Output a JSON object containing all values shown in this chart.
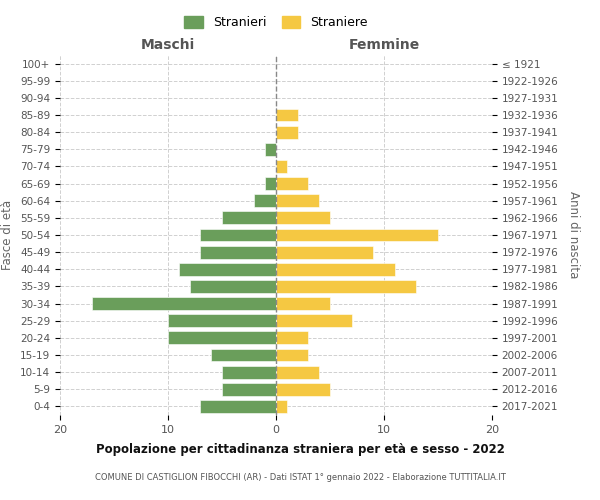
{
  "age_groups": [
    "0-4",
    "5-9",
    "10-14",
    "15-19",
    "20-24",
    "25-29",
    "30-34",
    "35-39",
    "40-44",
    "45-49",
    "50-54",
    "55-59",
    "60-64",
    "65-69",
    "70-74",
    "75-79",
    "80-84",
    "85-89",
    "90-94",
    "95-99",
    "100+"
  ],
  "birth_years": [
    "2017-2021",
    "2012-2016",
    "2007-2011",
    "2002-2006",
    "1997-2001",
    "1992-1996",
    "1987-1991",
    "1982-1986",
    "1977-1981",
    "1972-1976",
    "1967-1971",
    "1962-1966",
    "1957-1961",
    "1952-1956",
    "1947-1951",
    "1942-1946",
    "1937-1941",
    "1932-1936",
    "1927-1931",
    "1922-1926",
    "≤ 1921"
  ],
  "maschi": [
    7,
    5,
    5,
    6,
    10,
    10,
    17,
    8,
    9,
    7,
    7,
    5,
    2,
    1,
    0,
    1,
    0,
    0,
    0,
    0,
    0
  ],
  "femmine": [
    1,
    5,
    4,
    3,
    3,
    7,
    5,
    13,
    11,
    9,
    15,
    5,
    4,
    3,
    1,
    0,
    2,
    2,
    0,
    0,
    0
  ],
  "color_maschi": "#6a9e5b",
  "color_femmine": "#f5c842",
  "title": "Popolazione per cittadinanza straniera per età e sesso - 2022",
  "subtitle": "COMUNE DI CASTIGLION FIBOCCHI (AR) - Dati ISTAT 1° gennaio 2022 - Elaborazione TUTTITALIA.IT",
  "xlabel_left": "Maschi",
  "xlabel_right": "Femmine",
  "ylabel_left": "Fasce di età",
  "ylabel_right": "Anni di nascita",
  "legend_maschi": "Stranieri",
  "legend_femmine": "Straniere",
  "xlim": 20,
  "background_color": "#ffffff",
  "grid_color": "#d0d0d0"
}
